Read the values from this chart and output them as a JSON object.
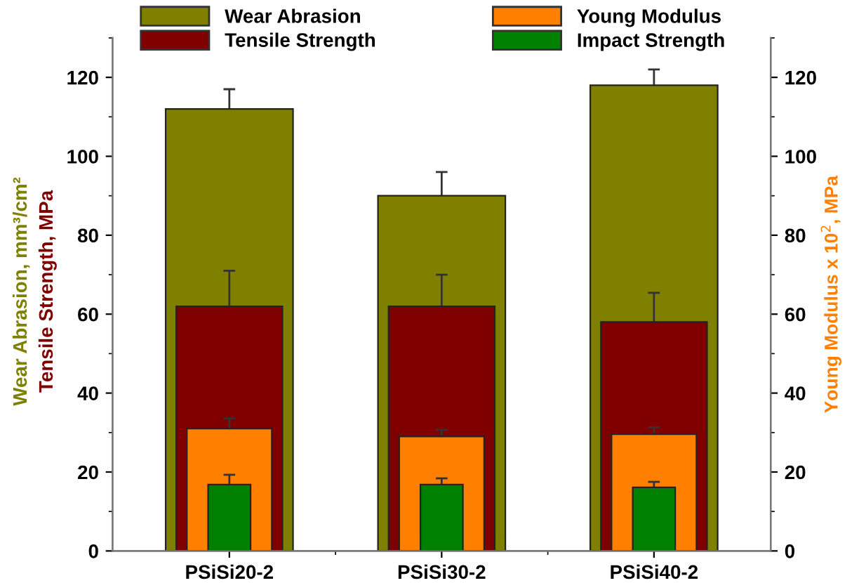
{
  "chart_data": {
    "type": "bar",
    "categories": [
      "PSiSi20-2",
      "PSiSi30-2",
      "PSiSi40-2"
    ],
    "ylabel": "Wear Abrasion, mm³/cm²\nTensile Strength, MPa",
    "y2label": "Young Modulus x 10$^{2}$, MPa",
    "series": [
      {
        "name": "Wear Abrasion",
        "color": "#808000",
        "values": [
          112,
          90,
          118
        ],
        "errors": [
          5,
          6,
          4
        ]
      },
      {
        "name": "Tensile Strength",
        "color": "#800000",
        "values": [
          62,
          62,
          58
        ],
        "errors": [
          9,
          8,
          7.4
        ]
      },
      {
        "name": "Young Modulus",
        "color": "#ff8000",
        "values": [
          31,
          29,
          29.6
        ],
        "errors": [
          2.6,
          1.7,
          1.7
        ],
        "axis": "y2"
      },
      {
        "name": "Impact Strength",
        "color": "#008000",
        "values": [
          16.8,
          16.8,
          16.1
        ],
        "errors": [
          2.5,
          1.6,
          1.4
        ]
      }
    ],
    "ylim": [
      0,
      130
    ],
    "yticks": [
      0,
      20,
      40,
      60,
      80,
      100,
      120
    ],
    "y2lim": [
      0,
      130
    ],
    "y2ticks": [
      0,
      20,
      40,
      60,
      80,
      100,
      120
    ],
    "legend": "top",
    "grid": false
  }
}
